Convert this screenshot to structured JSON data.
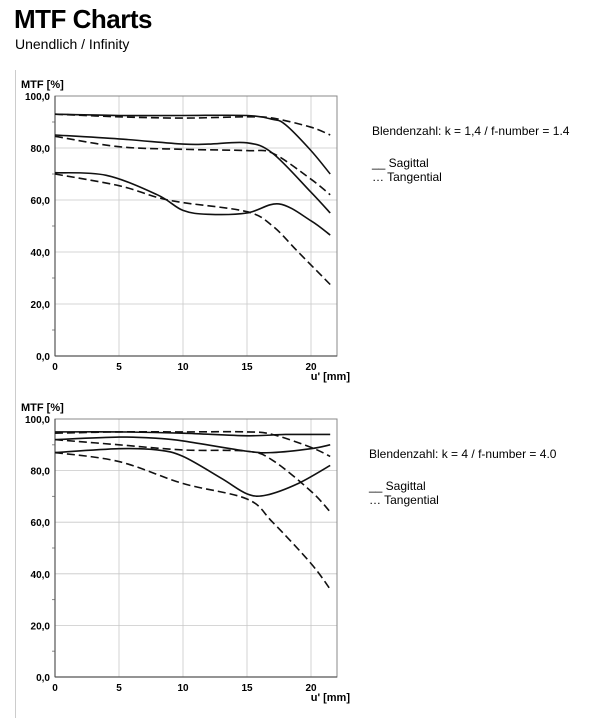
{
  "header": {
    "title": "MTF Charts",
    "subtitle": "Unendlich / Infinity"
  },
  "chart_data": [
    {
      "type": "line",
      "title": "",
      "ylabel": "MTF [%]",
      "xlabel": "u' [mm]",
      "xlim": [
        0,
        22
      ],
      "ylim": [
        0,
        100
      ],
      "xticks": [
        "0",
        "5",
        "10",
        "15",
        "20"
      ],
      "yticks": [
        "0,0",
        "20,0",
        "40,0",
        "60,0",
        "80,0",
        "100,0"
      ],
      "grid": true,
      "legend": {
        "fnumber": "Blendenzahl: k = 1,4 / f-number = 1.4",
        "sagittal": "__ Sagittal",
        "tangential": "… Tangential",
        "placement": "right"
      },
      "series": [
        {
          "name": "Sagittal 1",
          "style": "solid",
          "x": [
            0,
            5,
            10,
            15,
            17,
            18,
            20,
            21.5
          ],
          "y": [
            93,
            92.5,
            92.5,
            92.5,
            91,
            89,
            79,
            70
          ]
        },
        {
          "name": "Sagittal 2",
          "style": "solid",
          "x": [
            0,
            5,
            10,
            12,
            15,
            17,
            20,
            21.5
          ],
          "y": [
            85,
            83.5,
            81.5,
            81.5,
            82,
            78,
            63,
            55
          ]
        },
        {
          "name": "Sagittal 3",
          "style": "solid",
          "x": [
            0,
            4,
            8,
            10,
            12,
            15,
            17.5,
            20,
            21.5
          ],
          "y": [
            70.5,
            69.5,
            62,
            56,
            54.5,
            55,
            58.5,
            52,
            46.5
          ]
        },
        {
          "name": "Tangential 1",
          "style": "dashed",
          "x": [
            0,
            5,
            10,
            15,
            17,
            20,
            21.5
          ],
          "y": [
            93,
            92,
            91.5,
            92,
            91.5,
            88,
            85
          ]
        },
        {
          "name": "Tangential 2",
          "style": "dashed",
          "x": [
            0,
            5,
            10,
            15,
            17,
            20,
            21.5
          ],
          "y": [
            84.5,
            80.5,
            79.5,
            79,
            78,
            68,
            62
          ]
        },
        {
          "name": "Tangential 3",
          "style": "dashed",
          "x": [
            0,
            5,
            8,
            10,
            15,
            17,
            19,
            21.5
          ],
          "y": [
            70,
            65.5,
            61,
            59,
            55.5,
            50,
            40,
            27.5
          ]
        }
      ]
    },
    {
      "type": "line",
      "title": "",
      "ylabel": "MTF [%]",
      "xlabel": "u' [mm]",
      "xlim": [
        0,
        22
      ],
      "ylim": [
        0,
        100
      ],
      "xticks": [
        "0",
        "5",
        "10",
        "15",
        "20"
      ],
      "yticks": [
        "0,0",
        "20,0",
        "40,0",
        "60,0",
        "80,0",
        "100,0"
      ],
      "grid": true,
      "legend": {
        "fnumber": "Blendenzahl: k = 4 / f-number = 4.0",
        "sagittal": "__ Sagittal",
        "tangential": "… Tangential",
        "placement": "right"
      },
      "series": [
        {
          "name": "Sagittal 1",
          "style": "solid",
          "x": [
            0,
            5,
            10,
            15,
            18,
            21.5
          ],
          "y": [
            95,
            95,
            94.5,
            93.5,
            94,
            94
          ]
        },
        {
          "name": "Sagittal 2",
          "style": "solid",
          "x": [
            0,
            5,
            8,
            10,
            15,
            17,
            20,
            21.5
          ],
          "y": [
            92,
            93,
            92.5,
            91.5,
            87.5,
            87,
            88.5,
            90
          ]
        },
        {
          "name": "Sagittal 3",
          "style": "solid",
          "x": [
            0,
            5,
            8,
            10,
            13,
            15,
            16.5,
            19,
            21.5
          ],
          "y": [
            87,
            88.5,
            88,
            85.5,
            77,
            71,
            70.5,
            75,
            82
          ]
        },
        {
          "name": "Tangential 1",
          "style": "dashed",
          "x": [
            0,
            5,
            10,
            15,
            17,
            20,
            21.5
          ],
          "y": [
            94.5,
            95,
            95,
            95,
            94,
            89,
            85.5
          ]
        },
        {
          "name": "Tangential 2",
          "style": "dashed",
          "x": [
            0,
            5,
            10,
            15,
            17,
            20,
            21.5
          ],
          "y": [
            92,
            90,
            88,
            87.5,
            84,
            72,
            64
          ]
        },
        {
          "name": "Tangential 3",
          "style": "dashed",
          "x": [
            0,
            5,
            10,
            15,
            17,
            20,
            21.5
          ],
          "y": [
            87,
            83.5,
            75,
            69,
            60,
            44,
            34
          ]
        }
      ]
    }
  ]
}
